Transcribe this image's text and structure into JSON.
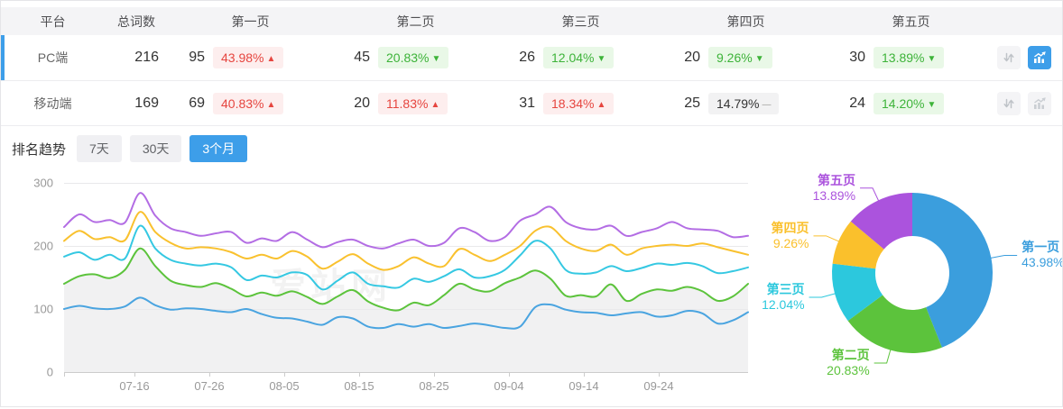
{
  "table": {
    "columns": [
      "平台",
      "总词数",
      "第一页",
      "第二页",
      "第三页",
      "第四页",
      "第五页"
    ],
    "rows": [
      {
        "platform": "PC端",
        "total": "216",
        "selected": "selected",
        "chart_btn": "active",
        "pages": [
          {
            "count": "95",
            "pct": "43.98%",
            "trend": "up",
            "arrow": "▲"
          },
          {
            "count": "45",
            "pct": "20.83%",
            "trend": "down",
            "arrow": "▼"
          },
          {
            "count": "26",
            "pct": "12.04%",
            "trend": "down",
            "arrow": "▼"
          },
          {
            "count": "20",
            "pct": "9.26%",
            "trend": "down",
            "arrow": "▼"
          },
          {
            "count": "30",
            "pct": "13.89%",
            "trend": "down",
            "arrow": "▼"
          }
        ]
      },
      {
        "platform": "移动端",
        "total": "169",
        "pages": [
          {
            "count": "69",
            "pct": "40.83%",
            "trend": "up",
            "arrow": "▲"
          },
          {
            "count": "20",
            "pct": "11.83%",
            "trend": "up",
            "arrow": "▲"
          },
          {
            "count": "31",
            "pct": "18.34%",
            "trend": "up",
            "arrow": "▲"
          },
          {
            "count": "25",
            "pct": "14.79%",
            "trend": "flat",
            "arrow": "—"
          },
          {
            "count": "24",
            "pct": "14.20%",
            "trend": "down",
            "arrow": "▼"
          }
        ]
      }
    ]
  },
  "trend": {
    "label": "排名趋势",
    "tabs": [
      {
        "label": "7天"
      },
      {
        "label": "30天"
      },
      {
        "label": "3个月",
        "state": "active"
      }
    ]
  },
  "watermark": "爱站网",
  "chart_data": [
    {
      "type": "line",
      "title": "排名趋势",
      "selected_range": "3个月",
      "x_labels": [
        "07-16",
        "07-26",
        "08-05",
        "08-15",
        "08-25",
        "09-04",
        "09-14",
        "09-24"
      ],
      "ylim": [
        0,
        300
      ],
      "y_ticks": [
        0,
        100,
        200,
        300
      ],
      "grid": true,
      "stacked_cumulative": true,
      "area_under": "第二页",
      "area_color": "#f1f1f2",
      "series": [
        {
          "name": "第一页",
          "color": "#4aa4e0",
          "values": [
            100,
            105,
            101,
            100,
            104,
            118,
            106,
            99,
            101,
            100,
            97,
            95,
            100,
            92,
            86,
            85,
            80,
            75,
            87,
            85,
            72,
            70,
            76,
            72,
            76,
            70,
            73,
            77,
            74,
            70,
            72,
            103,
            107,
            99,
            95,
            94,
            90,
            93,
            95,
            88,
            90,
            97,
            93,
            77,
            82,
            95
          ]
        },
        {
          "name": "第二页",
          "color": "#5cc33c",
          "values": [
            140,
            152,
            155,
            149,
            162,
            196,
            168,
            145,
            138,
            135,
            141,
            132,
            120,
            126,
            121,
            128,
            119,
            108,
            120,
            130,
            112,
            102,
            98,
            110,
            106,
            122,
            140,
            131,
            128,
            141,
            150,
            161,
            148,
            121,
            122,
            120,
            139,
            113,
            124,
            131,
            129,
            135,
            128,
            113,
            120,
            140
          ]
        },
        {
          "name": "第三页",
          "color": "#35c8e2",
          "values": [
            183,
            190,
            178,
            186,
            180,
            232,
            196,
            178,
            172,
            169,
            172,
            166,
            146,
            153,
            150,
            158,
            154,
            131,
            145,
            158,
            140,
            136,
            134,
            148,
            143,
            152,
            163,
            150,
            152,
            162,
            185,
            208,
            196,
            162,
            156,
            158,
            168,
            160,
            165,
            172,
            170,
            173,
            168,
            157,
            160,
            166
          ]
        },
        {
          "name": "第四页",
          "color": "#f9c12e",
          "values": [
            208,
            224,
            211,
            214,
            209,
            254,
            222,
            205,
            196,
            198,
            196,
            190,
            180,
            186,
            180,
            192,
            183,
            164,
            175,
            187,
            172,
            162,
            168,
            182,
            172,
            168,
            195,
            186,
            176,
            186,
            200,
            224,
            230,
            208,
            196,
            192,
            202,
            186,
            196,
            200,
            202,
            200,
            204,
            198,
            192,
            186
          ]
        },
        {
          "name": "第五页",
          "color": "#b36de4",
          "values": [
            230,
            250,
            238,
            241,
            237,
            284,
            248,
            228,
            222,
            216,
            220,
            222,
            205,
            212,
            208,
            222,
            210,
            198,
            206,
            210,
            200,
            196,
            204,
            210,
            200,
            205,
            228,
            222,
            208,
            214,
            240,
            250,
            262,
            238,
            228,
            226,
            232,
            216,
            222,
            228,
            238,
            228,
            226,
            224,
            214,
            216
          ]
        }
      ]
    },
    {
      "type": "donut",
      "slices": [
        {
          "label": "第一页",
          "value": 43.98,
          "color": "#3b9edd"
        },
        {
          "label": "第二页",
          "value": 20.83,
          "color": "#5cc33c"
        },
        {
          "label": "第三页",
          "value": 12.04,
          "color": "#2cc8dd"
        },
        {
          "label": "第四页",
          "value": 9.26,
          "color": "#fac02c"
        },
        {
          "label": "第五页",
          "value": 13.89,
          "color": "#ab53dd"
        }
      ]
    }
  ]
}
